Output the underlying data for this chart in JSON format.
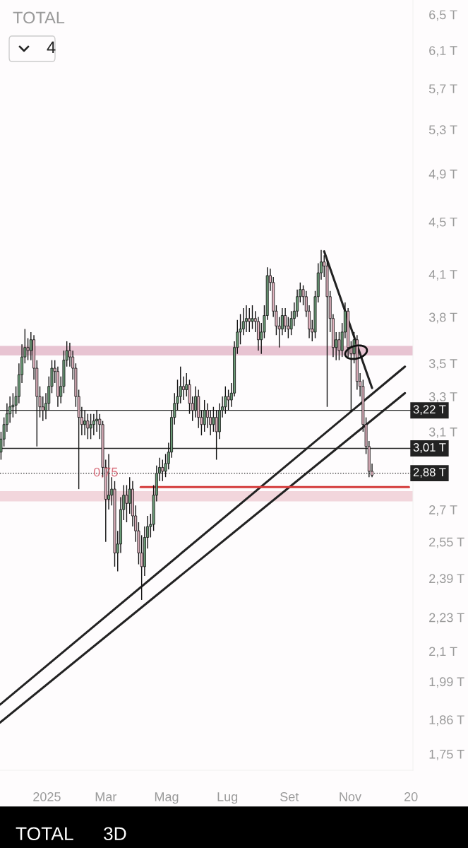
{
  "chart_data": {
    "type": "candlestick",
    "title": "TOTAL",
    "x": [
      "2024-11-16",
      "2024-11-19",
      "2024-11-22",
      "2024-11-25",
      "2024-11-28",
      "2024-12-01",
      "2024-12-04",
      "2024-12-07",
      "2024-12-10",
      "2024-12-13",
      "2024-12-16",
      "2024-12-19",
      "2024-12-22",
      "2024-12-25",
      "2024-12-28",
      "2024-12-31",
      "2025-01-03",
      "2025-01-06",
      "2025-01-09",
      "2025-01-12",
      "2025-01-15",
      "2025-01-18",
      "2025-01-21",
      "2025-01-24",
      "2025-01-27",
      "2025-01-30",
      "2025-02-02",
      "2025-02-05",
      "2025-02-08",
      "2025-02-11",
      "2025-02-14",
      "2025-02-17",
      "2025-02-20",
      "2025-02-23",
      "2025-02-26",
      "2025-03-01",
      "2025-03-04",
      "2025-03-07",
      "2025-03-10",
      "2025-03-13",
      "2025-03-16",
      "2025-03-19",
      "2025-03-22",
      "2025-03-25",
      "2025-03-28",
      "2025-03-31",
      "2025-04-03",
      "2025-04-06",
      "2025-04-09",
      "2025-04-12",
      "2025-04-15",
      "2025-04-18",
      "2025-04-21",
      "2025-04-24",
      "2025-04-27",
      "2025-04-30",
      "2025-05-03",
      "2025-05-06",
      "2025-05-09",
      "2025-05-12",
      "2025-05-15",
      "2025-05-18",
      "2025-05-21",
      "2025-05-24",
      "2025-05-27",
      "2025-05-30",
      "2025-06-02",
      "2025-06-05",
      "2025-06-08",
      "2025-06-11",
      "2025-06-14",
      "2025-06-17",
      "2025-06-20",
      "2025-06-23",
      "2025-06-26",
      "2025-06-29",
      "2025-07-02",
      "2025-07-05",
      "2025-07-08",
      "2025-07-11",
      "2025-07-14",
      "2025-07-17",
      "2025-07-20",
      "2025-07-23",
      "2025-07-26",
      "2025-07-29",
      "2025-08-01",
      "2025-08-04",
      "2025-08-07",
      "2025-08-10",
      "2025-08-13",
      "2025-08-16",
      "2025-08-19",
      "2025-08-22",
      "2025-08-25",
      "2025-08-28",
      "2025-08-31",
      "2025-09-03",
      "2025-09-06",
      "2025-09-09",
      "2025-09-12",
      "2025-09-15",
      "2025-09-18",
      "2025-09-21",
      "2025-09-24",
      "2025-09-27",
      "2025-09-30",
      "2025-10-03",
      "2025-10-06",
      "2025-10-09",
      "2025-10-12",
      "2025-10-15",
      "2025-10-18",
      "2025-10-21",
      "2025-10-24",
      "2025-10-27",
      "2025-10-30",
      "2025-11-02",
      "2025-11-05",
      "2025-11-08",
      "2025-11-11",
      "2025-11-14",
      "2025-11-17",
      "2025-11-20",
      "2025-11-23"
    ],
    "ohlc": [
      [
        2.99,
        3.1,
        2.95,
        3.06
      ],
      [
        3.06,
        3.18,
        3.02,
        3.14
      ],
      [
        3.14,
        3.26,
        3.1,
        3.2
      ],
      [
        3.2,
        3.3,
        3.15,
        3.24
      ],
      [
        3.24,
        3.32,
        3.18,
        3.25
      ],
      [
        3.25,
        3.36,
        3.2,
        3.3
      ],
      [
        3.3,
        3.5,
        3.26,
        3.43
      ],
      [
        3.43,
        3.62,
        3.38,
        3.54
      ],
      [
        3.54,
        3.72,
        3.5,
        3.6
      ],
      [
        3.6,
        3.66,
        3.52,
        3.58
      ],
      [
        3.58,
        3.7,
        3.52,
        3.65
      ],
      [
        3.65,
        3.68,
        3.4,
        3.47
      ],
      [
        3.47,
        3.52,
        3.02,
        3.3
      ],
      [
        3.3,
        3.36,
        3.18,
        3.24
      ],
      [
        3.24,
        3.3,
        3.16,
        3.22
      ],
      [
        3.22,
        3.32,
        3.17,
        3.26
      ],
      [
        3.26,
        3.42,
        3.22,
        3.36
      ],
      [
        3.36,
        3.52,
        3.32,
        3.47
      ],
      [
        3.47,
        3.52,
        3.38,
        3.45
      ],
      [
        3.45,
        3.48,
        3.24,
        3.3
      ],
      [
        3.3,
        3.42,
        3.26,
        3.36
      ],
      [
        3.36,
        3.58,
        3.32,
        3.52
      ],
      [
        3.52,
        3.64,
        3.48,
        3.58
      ],
      [
        3.58,
        3.63,
        3.48,
        3.54
      ],
      [
        3.54,
        3.58,
        3.4,
        3.47
      ],
      [
        3.47,
        3.5,
        3.24,
        3.3
      ],
      [
        3.3,
        3.34,
        2.8,
        3.18
      ],
      [
        3.18,
        3.24,
        3.08,
        3.14
      ],
      [
        3.14,
        3.22,
        3.08,
        3.16
      ],
      [
        3.16,
        3.2,
        3.06,
        3.12
      ],
      [
        3.12,
        3.2,
        3.06,
        3.14
      ],
      [
        3.14,
        3.2,
        3.08,
        3.16
      ],
      [
        3.16,
        3.22,
        3.1,
        3.17
      ],
      [
        3.17,
        3.2,
        3.06,
        3.14
      ],
      [
        3.14,
        3.16,
        2.86,
        2.91
      ],
      [
        2.91,
        2.95,
        2.55,
        2.75
      ],
      [
        2.75,
        2.98,
        2.7,
        2.77
      ],
      [
        2.77,
        2.86,
        2.72,
        2.8
      ],
      [
        2.8,
        2.84,
        2.44,
        2.5
      ],
      [
        2.5,
        2.6,
        2.42,
        2.54
      ],
      [
        2.54,
        2.76,
        2.5,
        2.7
      ],
      [
        2.7,
        2.82,
        2.65,
        2.77
      ],
      [
        2.77,
        2.82,
        2.64,
        2.73
      ],
      [
        2.73,
        2.86,
        2.68,
        2.8
      ],
      [
        2.8,
        2.84,
        2.62,
        2.67
      ],
      [
        2.67,
        2.72,
        2.55,
        2.6
      ],
      [
        2.6,
        2.64,
        2.45,
        2.5
      ],
      [
        2.5,
        2.58,
        2.3,
        2.44
      ],
      [
        2.44,
        2.62,
        2.4,
        2.57
      ],
      [
        2.57,
        2.67,
        2.52,
        2.62
      ],
      [
        2.62,
        2.68,
        2.57,
        2.63
      ],
      [
        2.63,
        2.82,
        2.6,
        2.77
      ],
      [
        2.77,
        2.92,
        2.74,
        2.88
      ],
      [
        2.88,
        2.96,
        2.84,
        2.91
      ],
      [
        2.91,
        2.95,
        2.84,
        2.89
      ],
      [
        2.89,
        2.98,
        2.86,
        2.93
      ],
      [
        2.93,
        3.04,
        2.9,
        2.99
      ],
      [
        2.99,
        3.22,
        2.96,
        3.18
      ],
      [
        3.18,
        3.32,
        3.14,
        3.26
      ],
      [
        3.26,
        3.4,
        3.22,
        3.3
      ],
      [
        3.3,
        3.48,
        3.26,
        3.36
      ],
      [
        3.36,
        3.42,
        3.28,
        3.34
      ],
      [
        3.34,
        3.44,
        3.3,
        3.37
      ],
      [
        3.37,
        3.4,
        3.2,
        3.26
      ],
      [
        3.26,
        3.3,
        3.16,
        3.22
      ],
      [
        3.22,
        3.36,
        3.18,
        3.3
      ],
      [
        3.3,
        3.34,
        3.12,
        3.18
      ],
      [
        3.18,
        3.22,
        3.08,
        3.14
      ],
      [
        3.14,
        3.28,
        3.1,
        3.22
      ],
      [
        3.22,
        3.26,
        3.12,
        3.18
      ],
      [
        3.18,
        3.22,
        3.08,
        3.14
      ],
      [
        3.14,
        3.24,
        3.1,
        3.18
      ],
      [
        3.18,
        3.22,
        2.95,
        3.1
      ],
      [
        3.1,
        3.26,
        3.06,
        3.22
      ],
      [
        3.22,
        3.3,
        3.18,
        3.24
      ],
      [
        3.24,
        3.36,
        3.2,
        3.3
      ],
      [
        3.3,
        3.34,
        3.22,
        3.28
      ],
      [
        3.28,
        3.38,
        3.24,
        3.32
      ],
      [
        3.32,
        3.64,
        3.3,
        3.6
      ],
      [
        3.6,
        3.78,
        3.56,
        3.7
      ],
      [
        3.7,
        3.82,
        3.62,
        3.72
      ],
      [
        3.72,
        3.86,
        3.68,
        3.77
      ],
      [
        3.77,
        3.88,
        3.7,
        3.79
      ],
      [
        3.79,
        3.86,
        3.7,
        3.77
      ],
      [
        3.77,
        3.88,
        3.72,
        3.79
      ],
      [
        3.79,
        3.84,
        3.7,
        3.77
      ],
      [
        3.77,
        3.8,
        3.58,
        3.65
      ],
      [
        3.65,
        3.76,
        3.56,
        3.7
      ],
      [
        3.7,
        3.88,
        3.66,
        3.81
      ],
      [
        3.81,
        4.15,
        3.78,
        4.09
      ],
      [
        4.09,
        4.14,
        3.98,
        4.04
      ],
      [
        4.04,
        4.08,
        3.8,
        3.84
      ],
      [
        3.84,
        3.88,
        3.68,
        3.74
      ],
      [
        3.74,
        3.8,
        3.6,
        3.72
      ],
      [
        3.72,
        3.86,
        3.68,
        3.81
      ],
      [
        3.81,
        3.86,
        3.7,
        3.74
      ],
      [
        3.74,
        3.8,
        3.66,
        3.72
      ],
      [
        3.72,
        3.84,
        3.68,
        3.79
      ],
      [
        3.79,
        3.9,
        3.74,
        3.84
      ],
      [
        3.84,
        3.99,
        3.8,
        3.94
      ],
      [
        3.94,
        4.04,
        3.9,
        3.99
      ],
      [
        3.99,
        4.02,
        3.88,
        3.94
      ],
      [
        3.94,
        3.98,
        3.8,
        3.84
      ],
      [
        3.84,
        3.88,
        3.66,
        3.72
      ],
      [
        3.72,
        3.78,
        3.64,
        3.7
      ],
      [
        3.7,
        3.98,
        3.66,
        3.94
      ],
      [
        3.94,
        4.18,
        3.9,
        4.11
      ],
      [
        4.11,
        4.28,
        4.06,
        4.19
      ],
      [
        4.19,
        4.24,
        4.08,
        4.16
      ],
      [
        4.16,
        4.2,
        3.24,
        3.94
      ],
      [
        3.94,
        3.98,
        3.7,
        3.79
      ],
      [
        3.79,
        3.82,
        3.54,
        3.6
      ],
      [
        3.6,
        3.7,
        3.52,
        3.65
      ],
      [
        3.65,
        3.7,
        3.52,
        3.58
      ],
      [
        3.58,
        3.76,
        3.54,
        3.7
      ],
      [
        3.7,
        3.9,
        3.66,
        3.84
      ],
      [
        3.84,
        3.86,
        3.54,
        3.6
      ],
      [
        3.6,
        3.64,
        3.21,
        3.56
      ],
      [
        3.56,
        3.7,
        3.5,
        3.65
      ],
      [
        3.65,
        3.68,
        3.34,
        3.39
      ],
      [
        3.39,
        3.44,
        3.3,
        3.36
      ],
      [
        3.36,
        3.4,
        3.1,
        3.14
      ],
      [
        3.14,
        3.18,
        2.98,
        3.02
      ],
      [
        3.02,
        3.05,
        2.86,
        2.89
      ],
      [
        2.89,
        2.93,
        2.86,
        2.87
      ]
    ],
    "colors": [
      "#6a9a76",
      "#6a9a76",
      "#6a9a76",
      "#6a9a76",
      "#6a9a76",
      "#6a9a76",
      "#6a9a76",
      "#6a9a76",
      "#6a9a76",
      "#e2b4c0",
      "#6a9a76",
      "#e2b4c0",
      "#e2b4c0",
      "#e2b4c0",
      "#e2b4c0",
      "#6a9a76",
      "#6a9a76",
      "#6a9a76",
      "#e2b4c0",
      "#e2b4c0",
      "#6a9a76",
      "#6a9a76",
      "#6a9a76",
      "#e2b4c0",
      "#e2b4c0",
      "#e2b4c0",
      "#e2b4c0",
      "#e2b4c0",
      "#6a9a76",
      "#e2b4c0",
      "#6a9a76",
      "#6a9a76",
      "#6a9a76",
      "#e2b4c0",
      "#e2b4c0",
      "#e2b4c0",
      "#6a9a76",
      "#6a9a76",
      "#e2b4c0",
      "#6a9a76",
      "#6a9a76",
      "#6a9a76",
      "#e2b4c0",
      "#6a9a76",
      "#e2b4c0",
      "#e2b4c0",
      "#e2b4c0",
      "#e2b4c0",
      "#6a9a76",
      "#6a9a76",
      "#6a9a76",
      "#6a9a76",
      "#6a9a76",
      "#6a9a76",
      "#e2b4c0",
      "#6a9a76",
      "#6a9a76",
      "#6a9a76",
      "#6a9a76",
      "#6a9a76",
      "#6a9a76",
      "#e2b4c0",
      "#6a9a76",
      "#e2b4c0",
      "#e2b4c0",
      "#6a9a76",
      "#e2b4c0",
      "#e2b4c0",
      "#6a9a76",
      "#e2b4c0",
      "#e2b4c0",
      "#6a9a76",
      "#e2b4c0",
      "#6a9a76",
      "#6a9a76",
      "#6a9a76",
      "#e2b4c0",
      "#6a9a76",
      "#6a9a76",
      "#6a9a76",
      "#6a9a76",
      "#6a9a76",
      "#6a9a76",
      "#e2b4c0",
      "#6a9a76",
      "#e2b4c0",
      "#e2b4c0",
      "#6a9a76",
      "#6a9a76",
      "#6a9a76",
      "#e2b4c0",
      "#e2b4c0",
      "#e2b4c0",
      "#e2b4c0",
      "#6a9a76",
      "#e2b4c0",
      "#e2b4c0",
      "#6a9a76",
      "#6a9a76",
      "#6a9a76",
      "#6a9a76",
      "#e2b4c0",
      "#e2b4c0",
      "#e2b4c0",
      "#e2b4c0",
      "#6a9a76",
      "#6a9a76",
      "#6a9a76",
      "#e2b4c0",
      "#e2b4c0",
      "#e2b4c0",
      "#e2b4c0",
      "#6a9a76",
      "#e2b4c0",
      "#6a9a76",
      "#6a9a76",
      "#e2b4c0",
      "#e2b4c0",
      "#6a9a76",
      "#e2b4c0",
      "#e2b4c0",
      "#e2b4c0",
      "#e2b4c0",
      "#e2b4c0",
      "#e2b4c0"
    ],
    "series": [
      {
        "type": "line",
        "x": [
          "2024-11-15",
          "2025-12-26"
        ],
        "values": [
          1.91,
          3.48
        ],
        "color": "#222222"
      },
      {
        "type": "line",
        "x": [
          "2024-11-15",
          "2025-12-26"
        ],
        "values": [
          1.85,
          3.32
        ],
        "color": "#222222"
      },
      {
        "type": "line",
        "x": [
          "2025-10-06",
          "2025-11-23"
        ],
        "values": [
          4.27,
          3.35
        ],
        "color": "#222222"
      },
      {
        "type": "line",
        "x": [
          "2025-04-05",
          "2025-12-30"
        ],
        "values": [
          2.81,
          2.81
        ],
        "color": "#d43c3c"
      }
    ],
    "log": "y",
    "xlim": [
      "2024-11-15",
      "2026-01-03"
    ],
    "ylim": [
      1.7,
      6.67
    ],
    "xticks": [
      {
        "value": "2025-01-01",
        "label": "2025"
      },
      {
        "value": "2025-03-01",
        "label": "Mar"
      },
      {
        "value": "2025-05-01",
        "label": "Mag"
      },
      {
        "value": "2025-07-01",
        "label": "Lug"
      },
      {
        "value": "2025-09-01",
        "label": "Set"
      },
      {
        "value": "2025-11-01",
        "label": "Nov"
      },
      {
        "value": "2026-01-01",
        "label": "20"
      }
    ],
    "yticks": [
      {
        "value": 1.75,
        "label": "1,75 T"
      },
      {
        "value": 1.86,
        "label": "1,86 T"
      },
      {
        "value": 1.99,
        "label": "1,99 T"
      },
      {
        "value": 2.1,
        "label": "2,1 T"
      },
      {
        "value": 2.23,
        "label": "2,23 T"
      },
      {
        "value": 2.39,
        "label": "2,39 T"
      },
      {
        "value": 2.55,
        "label": "2,55 T"
      },
      {
        "value": 2.7,
        "label": "2,7 T"
      },
      {
        "value": 3.1,
        "label": "3,1 T"
      },
      {
        "value": 3.3,
        "label": "3,3 T"
      },
      {
        "value": 3.5,
        "label": "3,5 T"
      },
      {
        "value": 3.8,
        "label": "3,8 T"
      },
      {
        "value": 4.1,
        "label": "4,1 T"
      },
      {
        "value": 4.5,
        "label": "4,5 T"
      },
      {
        "value": 4.9,
        "label": "4,9 T"
      },
      {
        "value": 5.3,
        "label": "5,3 T"
      },
      {
        "value": 5.7,
        "label": "5,7 T"
      },
      {
        "value": 6.1,
        "label": "6,1 T"
      },
      {
        "value": 6.5,
        "label": "6,5 T"
      }
    ],
    "ref_lines": [
      {
        "axis": "y",
        "value": 3.22,
        "label": "3,22 T",
        "color": "#222222",
        "line_style": "solid"
      },
      {
        "axis": "y",
        "value": 3.01,
        "label": "3,01 T",
        "color": "#222222",
        "line_style": "solid"
      },
      {
        "axis": "y",
        "value": 2.88,
        "label": "2,88 T",
        "color": "#222222",
        "line_style": "dotted"
      }
    ],
    "bands": [
      {
        "axis": "y",
        "from": 3.55,
        "to": 3.61,
        "color": "#e8c4d2"
      },
      {
        "axis": "y",
        "from": 2.74,
        "to": 2.79,
        "color": "#f2d6dc"
      }
    ],
    "annotations": [
      {
        "text": "0,75",
        "x": "2025-03-01",
        "y": 2.85
      },
      "4",
      "TOTAL",
      "3D"
    ]
  }
}
